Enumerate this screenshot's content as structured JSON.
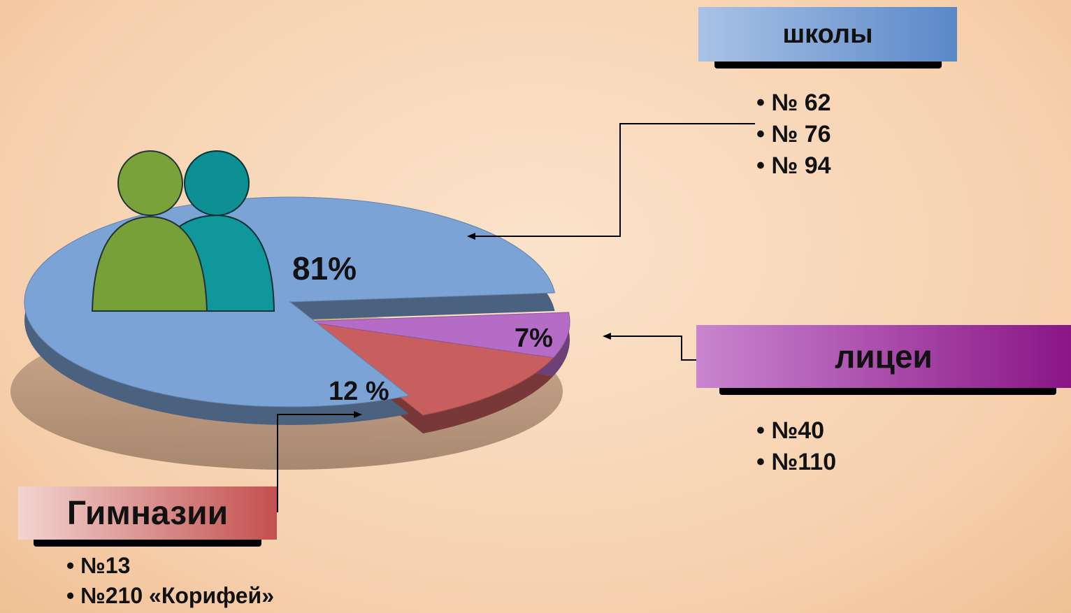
{
  "chart_data": {
    "type": "pie",
    "categories": [
      "школы",
      "лицеи",
      "Гимназии"
    ],
    "values": [
      81,
      7,
      12
    ],
    "value_labels": [
      "81%",
      "7%",
      "12 %"
    ],
    "colors": [
      "#7ba3d6",
      "#b56cc6",
      "#c95e5e"
    ],
    "items": [
      [
        "№ 62",
        "№ 76",
        "№ 94"
      ],
      [
        "№40",
        "№110"
      ],
      [
        "№13",
        "№210 «Корифей»"
      ]
    ]
  }
}
